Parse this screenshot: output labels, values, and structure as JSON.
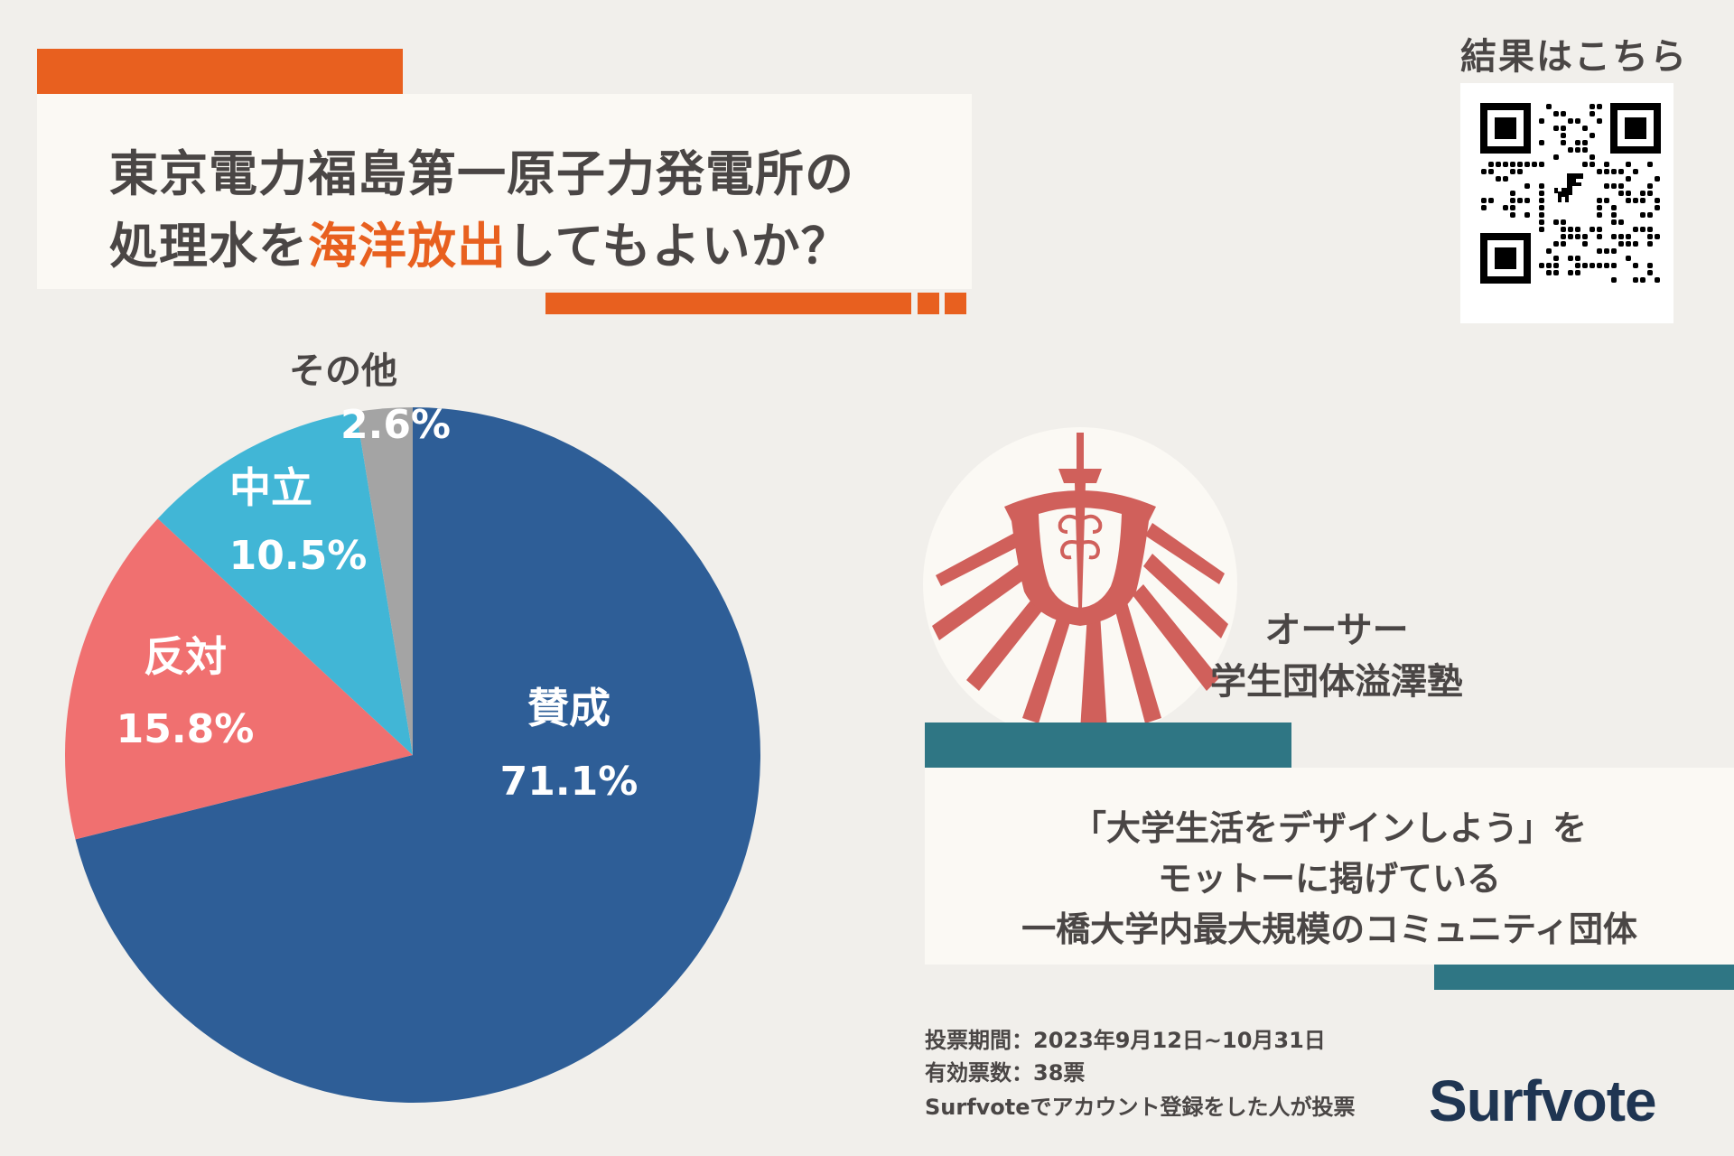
{
  "title": {
    "line1": "東京電力福島第一原子力発電所の",
    "line2_pre": "処理水を",
    "line2_highlight": "海洋放出",
    "line2_post": "してもよいか？"
  },
  "qr": {
    "label": "結果はこちら"
  },
  "chart_data": {
    "type": "pie",
    "unit": "%",
    "slices": [
      {
        "name": "賛成",
        "value": 71.1,
        "label": "71.1%",
        "color": "#2e5e97"
      },
      {
        "name": "反対",
        "value": 15.8,
        "label": "15.8%",
        "color": "#f07070"
      },
      {
        "name": "中立",
        "value": 10.5,
        "label": "10.5%",
        "color": "#41b6d6"
      },
      {
        "name": "その他",
        "value": 2.6,
        "label": "2.6%",
        "color": "#a4a4a4"
      }
    ],
    "title": "",
    "legend": "none"
  },
  "author": {
    "role": "オーサー",
    "name": "学生団体溢澤塾"
  },
  "description": {
    "line1": "「大学生活をデザインしよう」を",
    "line2": "モットーに掲げている",
    "line3": "一橋大学内最大規模のコミュニティ団体"
  },
  "footer": {
    "period": "投票期間：2023年9月12日~10月31日",
    "count": "有効票数：38票",
    "note": "Surfvoteでアカウント登録をした人が投票"
  },
  "brand": "Surfvote",
  "colors": {
    "accent_orange": "#e8601f",
    "accent_teal": "#2f7684",
    "logo_red": "#d0605b",
    "brand_navy": "#1f3552"
  }
}
